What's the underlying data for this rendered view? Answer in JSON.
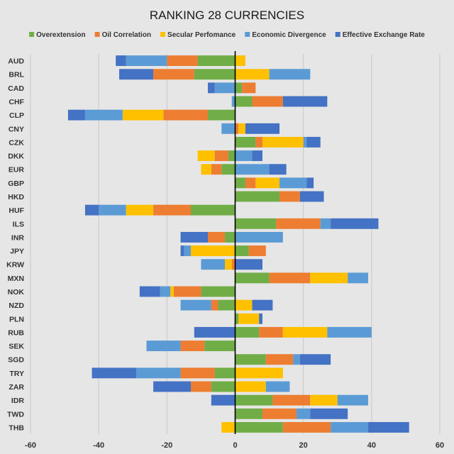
{
  "chart_data": {
    "type": "bar",
    "stacked": true,
    "orientation": "horizontal",
    "title": "RANKING 28 CURRENCIES",
    "xlabel": "",
    "ylabel": "",
    "xlim": [
      -60,
      60
    ],
    "x_ticks": [
      -60,
      -40,
      -20,
      0,
      20,
      40,
      60
    ],
    "grid": true,
    "legend_position": "top",
    "categories": [
      "AUD",
      "BRL",
      "CAD",
      "CHF",
      "CLP",
      "CNY",
      "CZK",
      "DKK",
      "EUR",
      "GBP",
      "HKD",
      "HUF",
      "ILS",
      "INR",
      "JPY",
      "KRW",
      "MXN",
      "NOK",
      "NZD",
      "PLN",
      "RUB",
      "SEK",
      "SGD",
      "TRY",
      "ZAR",
      "IDR",
      "TWD",
      "THB"
    ],
    "series": [
      {
        "name": "Overextension",
        "color": "#70ad47",
        "values": [
          -11,
          -12,
          2,
          5,
          -8,
          0,
          6,
          -2,
          -4,
          3,
          13,
          -13,
          12,
          -3,
          4,
          0,
          10,
          -10,
          -5,
          1,
          7,
          -9,
          9,
          -6,
          -7,
          11,
          8,
          14
        ]
      },
      {
        "name": "Oil Correlation",
        "color": "#ed7d31",
        "values": [
          -9,
          -12,
          4,
          9,
          -13,
          1,
          2,
          -4,
          -3,
          3,
          6,
          -11,
          13,
          -5,
          5,
          -1,
          12,
          -8,
          -2,
          0,
          7,
          -7,
          8,
          -10,
          -6,
          11,
          10,
          14
        ]
      },
      {
        "name": "Secular Perfomance",
        "color": "#ffc000",
        "values": [
          3,
          10,
          0,
          0,
          -12,
          2,
          12,
          -5,
          -3,
          7,
          0,
          -8,
          0,
          0,
          -13,
          -2,
          11,
          -1,
          5,
          6,
          13,
          0,
          0,
          14,
          9,
          8,
          0,
          -4
        ]
      },
      {
        "name": "Economic Divergence",
        "color": "#5b9bd5",
        "values": [
          -12,
          12,
          -6,
          -1,
          -11,
          -4,
          1,
          5,
          10,
          8,
          0,
          -8,
          3,
          14,
          -2,
          -7,
          6,
          -3,
          -9,
          0,
          13,
          -10,
          2,
          -13,
          7,
          9,
          4,
          11
        ]
      },
      {
        "name": "Effective Exchange Rate",
        "color": "#4472c4",
        "values": [
          -3,
          -10,
          -2,
          13,
          -5,
          10,
          4,
          3,
          5,
          2,
          7,
          -4,
          14,
          -8,
          -1,
          8,
          0,
          -6,
          6,
          1,
          -12,
          0,
          9,
          -13,
          -11,
          -7,
          11,
          12
        ]
      }
    ]
  }
}
